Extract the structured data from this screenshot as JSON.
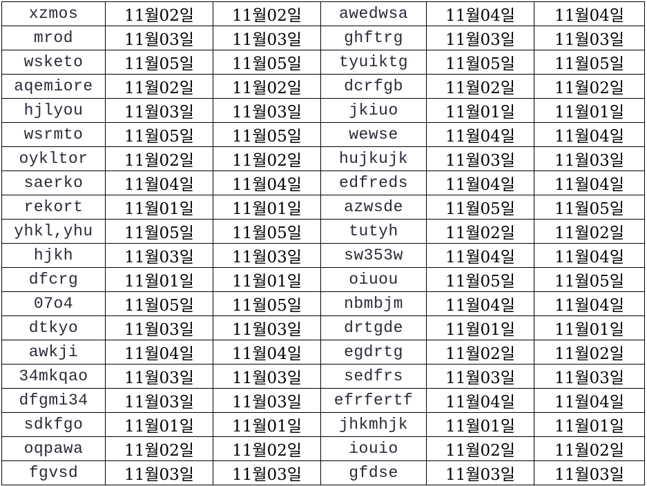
{
  "rows": [
    [
      "xzmos",
      "11월02일",
      "11월02일",
      "awedwsa",
      "11월04일",
      "11월04일"
    ],
    [
      "mrod",
      "11월03일",
      "11월03일",
      "ghftrg",
      "11월03일",
      "11월03일"
    ],
    [
      "wsketo",
      "11월05일",
      "11월05일",
      "tyuiktg",
      "11월05일",
      "11월05일"
    ],
    [
      "aqemiore",
      "11월02일",
      "11월02일",
      "dcrfgb",
      "11월02일",
      "11월02일"
    ],
    [
      "hjlyou",
      "11월03일",
      "11월03일",
      "jkiuo",
      "11월01일",
      "11월01일"
    ],
    [
      "wsrmto",
      "11월05일",
      "11월05일",
      "wewse",
      "11월04일",
      "11월04일"
    ],
    [
      "oykltor",
      "11월02일",
      "11월02일",
      "hujkujk",
      "11월03일",
      "11월03일"
    ],
    [
      "saerko",
      "11월04일",
      "11월04일",
      "edfreds",
      "11월04일",
      "11월04일"
    ],
    [
      "rekort",
      "11월01일",
      "11월01일",
      "azwsde",
      "11월05일",
      "11월05일"
    ],
    [
      "yhkl,yhu",
      "11월05일",
      "11월05일",
      "tutyh",
      "11월02일",
      "11월02일"
    ],
    [
      "hjkh",
      "11월03일",
      "11월03일",
      "sw353w",
      "11월04일",
      "11월04일"
    ],
    [
      "dfcrg",
      "11월01일",
      "11월01일",
      "oiuou",
      "11월05일",
      "11월05일"
    ],
    [
      "07o4",
      "11월05일",
      "11월05일",
      "nbmbjm",
      "11월04일",
      "11월04일"
    ],
    [
      "dtkyo",
      "11월03일",
      "11월03일",
      "drtgde",
      "11월01일",
      "11월01일"
    ],
    [
      "awkji",
      "11월04일",
      "11월04일",
      "egdrtg",
      "11월02일",
      "11월02일"
    ],
    [
      "34mkqao",
      "11월03일",
      "11월03일",
      "sedfrs",
      "11월03일",
      "11월03일"
    ],
    [
      "dfgmi34",
      "11월03일",
      "11월03일",
      "efrfertf",
      "11월04일",
      "11월04일"
    ],
    [
      "sdkfgo",
      "11월01일",
      "11월01일",
      "jhkmhjk",
      "11월01일",
      "11월01일"
    ],
    [
      "oqpawa",
      "11월02일",
      "11월02일",
      "iouio",
      "11월02일",
      "11월02일"
    ],
    [
      "fgvsd",
      "11월03일",
      "11월03일",
      "gfdse",
      "11월03일",
      "11월03일"
    ]
  ]
}
